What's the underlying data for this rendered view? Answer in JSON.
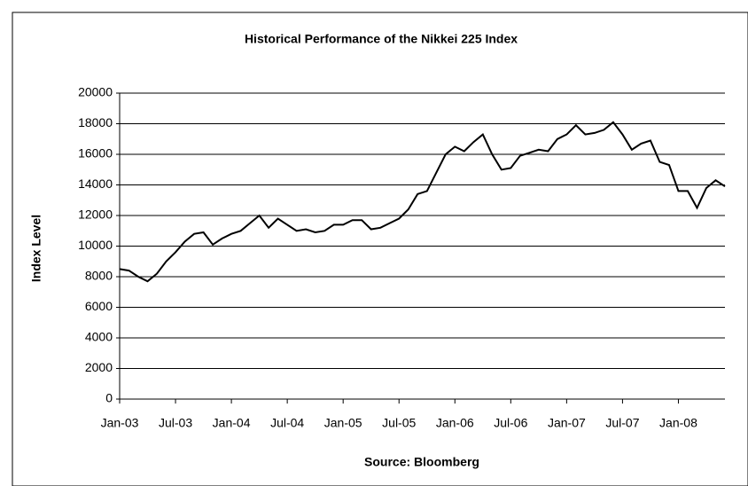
{
  "chart_data": {
    "type": "line",
    "title": "Historical Performance of the Nikkei 225 Index",
    "y_label": "Index Level",
    "x_label": "Source: Bloomberg",
    "x": [
      "Jan-03",
      "Feb-03",
      "Mar-03",
      "Apr-03",
      "May-03",
      "Jun-03",
      "Jul-03",
      "Aug-03",
      "Sep-03",
      "Oct-03",
      "Nov-03",
      "Dec-03",
      "Jan-04",
      "Feb-04",
      "Mar-04",
      "Apr-04",
      "May-04",
      "Jun-04",
      "Jul-04",
      "Aug-04",
      "Sep-04",
      "Oct-04",
      "Nov-04",
      "Dec-04",
      "Jan-05",
      "Feb-05",
      "Mar-05",
      "Apr-05",
      "May-05",
      "Jun-05",
      "Jul-05",
      "Aug-05",
      "Sep-05",
      "Oct-05",
      "Nov-05",
      "Dec-05",
      "Jan-06",
      "Feb-06",
      "Mar-06",
      "Apr-06",
      "May-06",
      "Jun-06",
      "Jul-06",
      "Aug-06",
      "Sep-06",
      "Oct-06",
      "Nov-06",
      "Dec-06",
      "Jan-07",
      "Feb-07",
      "Mar-07",
      "Apr-07",
      "May-07",
      "Jun-07",
      "Jul-07",
      "Aug-07",
      "Sep-07",
      "Oct-07",
      "Nov-07",
      "Dec-07",
      "Jan-08",
      "Feb-08",
      "Mar-08",
      "Apr-08",
      "May-08",
      "Jun-08"
    ],
    "values": [
      8500,
      8400,
      8000,
      7700,
      8200,
      9000,
      9600,
      10300,
      10800,
      10900,
      10100,
      10500,
      10800,
      11000,
      11500,
      12000,
      11200,
      11800,
      11400,
      11000,
      11100,
      10900,
      11000,
      11400,
      11400,
      11700,
      11700,
      11100,
      11200,
      11500,
      11800,
      12400,
      13400,
      13600,
      14800,
      16000,
      16500,
      16200,
      16800,
      17300,
      16000,
      15000,
      15100,
      15900,
      16100,
      16300,
      16200,
      17000,
      17300,
      17900,
      17300,
      17400,
      17600,
      18100,
      17300,
      16300,
      16700,
      16900,
      15500,
      15300,
      13600,
      13600,
      12500,
      13800,
      14300,
      13900
    ],
    "color": "#000000",
    "xticks": [
      "Jan-03",
      "Jul-03",
      "Jan-04",
      "Jul-04",
      "Jan-05",
      "Jul-05",
      "Jan-06",
      "Jul-06",
      "Jan-07",
      "Jul-07",
      "Jan-08"
    ],
    "ylim": [
      0,
      20000
    ],
    "yticks": [
      0,
      2000,
      4000,
      6000,
      8000,
      10000,
      12000,
      14000,
      16000,
      18000,
      20000
    ],
    "grid": true
  }
}
